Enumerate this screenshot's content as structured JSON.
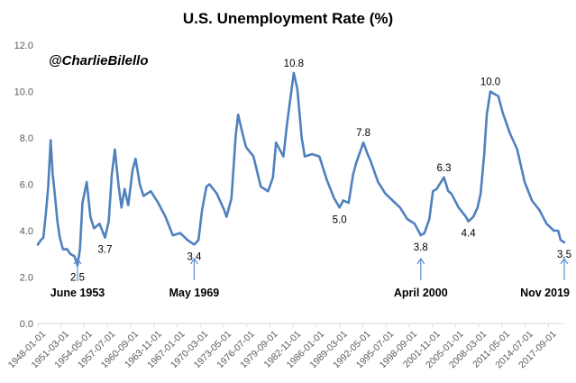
{
  "chart_data": {
    "type": "line",
    "title": "U.S. Unemployment Rate (%)",
    "watermark": "@CharlieBilello",
    "ylim": [
      0,
      12
    ],
    "y_ticks": [
      "0.0",
      "2.0",
      "4.0",
      "6.0",
      "8.0",
      "10.0",
      "12.0"
    ],
    "x_ticks": [
      "1948-01-01",
      "1951-03-01",
      "1954-05-01",
      "1957-07-01",
      "1960-09-01",
      "1963-11-01",
      "1967-01-01",
      "1970-03-01",
      "1973-05-01",
      "1976-07-01",
      "1979-09-01",
      "1982-11-01",
      "1986-01-01",
      "1989-03-01",
      "1992-05-01",
      "1995-07-01",
      "1998-09-01",
      "2001-11-01",
      "2005-01-01",
      "2008-03-01",
      "2011-05-01",
      "2014-07-01",
      "2017-09-01"
    ],
    "x_range": [
      "1948-01",
      "2019-11"
    ],
    "grid": false,
    "legend": "none",
    "line_color": "#4f81bd",
    "series": [
      {
        "points": [
          [
            "1948-01",
            3.4
          ],
          [
            "1948-06",
            3.6
          ],
          [
            "1948-10",
            3.7
          ],
          [
            "1949-02",
            4.7
          ],
          [
            "1949-06",
            5.9
          ],
          [
            "1949-10",
            7.9
          ],
          [
            "1950-01",
            6.5
          ],
          [
            "1950-05",
            5.5
          ],
          [
            "1950-09",
            4.4
          ],
          [
            "1951-01",
            3.7
          ],
          [
            "1951-06",
            3.2
          ],
          [
            "1952-01",
            3.2
          ],
          [
            "1952-06",
            3.0
          ],
          [
            "1953-01",
            2.9
          ],
          [
            "1953-06",
            2.5
          ],
          [
            "1953-10",
            3.2
          ],
          [
            "1954-02",
            5.2
          ],
          [
            "1954-09",
            6.1
          ],
          [
            "1955-03",
            4.6
          ],
          [
            "1955-09",
            4.1
          ],
          [
            "1956-06",
            4.3
          ],
          [
            "1957-03",
            3.7
          ],
          [
            "1957-09",
            4.4
          ],
          [
            "1958-02",
            6.4
          ],
          [
            "1958-07",
            7.5
          ],
          [
            "1959-01",
            6.0
          ],
          [
            "1959-06",
            5.0
          ],
          [
            "1959-11",
            5.8
          ],
          [
            "1960-05",
            5.1
          ],
          [
            "1960-12",
            6.6
          ],
          [
            "1961-05",
            7.1
          ],
          [
            "1961-12",
            6.0
          ],
          [
            "1962-06",
            5.5
          ],
          [
            "1963-06",
            5.7
          ],
          [
            "1964-06",
            5.2
          ],
          [
            "1965-06",
            4.6
          ],
          [
            "1966-06",
            3.8
          ],
          [
            "1967-06",
            3.9
          ],
          [
            "1968-06",
            3.6
          ],
          [
            "1969-05",
            3.4
          ],
          [
            "1969-12",
            3.6
          ],
          [
            "1970-06",
            4.9
          ],
          [
            "1971-01",
            5.9
          ],
          [
            "1971-06",
            6.0
          ],
          [
            "1972-06",
            5.6
          ],
          [
            "1973-06",
            4.9
          ],
          [
            "1973-10",
            4.6
          ],
          [
            "1974-06",
            5.4
          ],
          [
            "1975-01",
            8.1
          ],
          [
            "1975-05",
            9.0
          ],
          [
            "1975-12",
            8.2
          ],
          [
            "1976-06",
            7.6
          ],
          [
            "1977-06",
            7.2
          ],
          [
            "1978-06",
            5.9
          ],
          [
            "1979-06",
            5.7
          ],
          [
            "1980-02",
            6.3
          ],
          [
            "1980-07",
            7.8
          ],
          [
            "1981-01",
            7.5
          ],
          [
            "1981-07",
            7.2
          ],
          [
            "1982-01",
            8.6
          ],
          [
            "1982-06",
            9.6
          ],
          [
            "1982-12",
            10.8
          ],
          [
            "1983-06",
            10.1
          ],
          [
            "1984-01",
            8.0
          ],
          [
            "1984-06",
            7.2
          ],
          [
            "1985-06",
            7.3
          ],
          [
            "1986-06",
            7.2
          ],
          [
            "1987-06",
            6.2
          ],
          [
            "1988-06",
            5.4
          ],
          [
            "1989-03",
            5.0
          ],
          [
            "1989-09",
            5.3
          ],
          [
            "1990-06",
            5.2
          ],
          [
            "1991-01",
            6.4
          ],
          [
            "1991-06",
            6.9
          ],
          [
            "1992-06",
            7.8
          ],
          [
            "1993-01",
            7.3
          ],
          [
            "1993-06",
            7.0
          ],
          [
            "1994-06",
            6.1
          ],
          [
            "1995-06",
            5.6
          ],
          [
            "1996-06",
            5.3
          ],
          [
            "1997-06",
            5.0
          ],
          [
            "1998-06",
            4.5
          ],
          [
            "1999-06",
            4.3
          ],
          [
            "2000-04",
            3.8
          ],
          [
            "2000-10",
            3.9
          ],
          [
            "2001-06",
            4.5
          ],
          [
            "2001-12",
            5.7
          ],
          [
            "2002-06",
            5.8
          ],
          [
            "2003-06",
            6.3
          ],
          [
            "2004-01",
            5.7
          ],
          [
            "2004-06",
            5.6
          ],
          [
            "2005-06",
            5.0
          ],
          [
            "2006-06",
            4.6
          ],
          [
            "2006-10",
            4.4
          ],
          [
            "2007-06",
            4.6
          ],
          [
            "2008-01",
            5.0
          ],
          [
            "2008-06",
            5.6
          ],
          [
            "2008-12",
            7.3
          ],
          [
            "2009-04",
            9.0
          ],
          [
            "2009-10",
            10.0
          ],
          [
            "2010-04",
            9.9
          ],
          [
            "2010-11",
            9.8
          ],
          [
            "2011-06",
            9.1
          ],
          [
            "2012-06",
            8.2
          ],
          [
            "2013-06",
            7.5
          ],
          [
            "2014-06",
            6.1
          ],
          [
            "2015-06",
            5.3
          ],
          [
            "2016-06",
            4.9
          ],
          [
            "2017-06",
            4.3
          ],
          [
            "2018-06",
            4.0
          ],
          [
            "2019-01",
            4.0
          ],
          [
            "2019-05",
            3.6
          ],
          [
            "2019-11",
            3.5
          ]
        ]
      }
    ],
    "data_labels": [
      {
        "date": "1953-06",
        "text": "2.5",
        "pos": "below"
      },
      {
        "date": "1957-03",
        "text": "3.7",
        "pos": "below"
      },
      {
        "date": "1969-05",
        "text": "3.4",
        "pos": "below"
      },
      {
        "date": "1982-12",
        "text": "10.8",
        "pos": "above"
      },
      {
        "date": "1989-03",
        "text": "5.0",
        "pos": "below"
      },
      {
        "date": "1992-06",
        "text": "7.8",
        "pos": "above"
      },
      {
        "date": "2000-04",
        "text": "3.8",
        "pos": "below"
      },
      {
        "date": "2003-06",
        "text": "6.3",
        "pos": "above"
      },
      {
        "date": "2006-10",
        "text": "4.4",
        "pos": "below"
      },
      {
        "date": "2009-10",
        "text": "10.0",
        "pos": "above"
      },
      {
        "date": "2019-11",
        "text": "3.5",
        "pos": "below"
      }
    ],
    "annotations": [
      {
        "date": "1953-06",
        "text": "June 1953"
      },
      {
        "date": "1969-05",
        "text": "May 1969"
      },
      {
        "date": "2000-04",
        "text": "April 2000"
      },
      {
        "date": "2019-11",
        "text": "Nov 2019"
      }
    ]
  }
}
